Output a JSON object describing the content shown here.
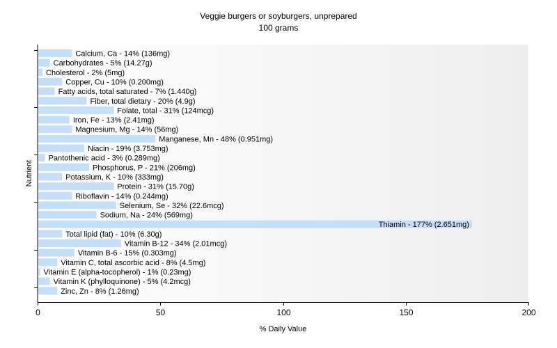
{
  "chart_data": {
    "type": "bar",
    "orientation": "horizontal",
    "title": "Veggie burgers or soyburgers, unprepared",
    "subtitle": "100 grams",
    "xlabel": "% Daily Value",
    "ylabel": "Nutrient",
    "xlim": [
      0,
      200
    ],
    "xticks": [
      0,
      50,
      100,
      150,
      200
    ],
    "grid": false,
    "bar_color": "#c6dff8",
    "background_gradient": [
      "#ffffff",
      "#eeeeee"
    ],
    "categories": [
      "Calcium, Ca",
      "Carbohydrates",
      "Cholesterol",
      "Copper, Cu",
      "Fatty acids, total saturated",
      "Fiber, total dietary",
      "Folate, total",
      "Iron, Fe",
      "Magnesium, Mg",
      "Manganese, Mn",
      "Niacin",
      "Pantothenic acid",
      "Phosphorus, P",
      "Potassium, K",
      "Protein",
      "Riboflavin",
      "Selenium, Se",
      "Sodium, Na",
      "Thiamin",
      "Total lipid (fat)",
      "Vitamin B-12",
      "Vitamin B-6",
      "Vitamin C, total ascorbic acid",
      "Vitamin E (alpha-tocopherol)",
      "Vitamin K (phylloquinone)",
      "Zinc, Zn"
    ],
    "values": [
      14,
      5,
      2,
      10,
      7,
      20,
      31,
      13,
      14,
      48,
      19,
      3,
      21,
      10,
      31,
      14,
      32,
      24,
      177,
      10,
      34,
      15,
      8,
      1,
      5,
      8
    ],
    "labels": [
      "Calcium, Ca - 14% (136mg)",
      "Carbohydrates - 5% (14.27g)",
      "Cholesterol - 2% (5mg)",
      "Copper, Cu - 10% (0.200mg)",
      "Fatty acids, total saturated - 7% (1.440g)",
      "Fiber, total dietary - 20% (4.9g)",
      "Folate, total - 31% (124mcg)",
      "Iron, Fe - 13% (2.41mg)",
      "Magnesium, Mg - 14% (56mg)",
      "Manganese, Mn - 48% (0.951mg)",
      "Niacin - 19% (3.753mg)",
      "Pantothenic acid - 3% (0.289mg)",
      "Phosphorus, P - 21% (206mg)",
      "Potassium, K - 10% (333mg)",
      "Protein - 31% (15.70g)",
      "Riboflavin - 14% (0.244mg)",
      "Selenium, Se - 32% (22.6mcg)",
      "Sodium, Na - 24% (569mg)",
      "Thiamin - 177% (2.651mg)",
      "Total lipid (fat) - 10% (6.30g)",
      "Vitamin B-12 - 34% (2.01mcg)",
      "Vitamin B-6 - 15% (0.303mg)",
      "Vitamin C, total ascorbic acid - 8% (4.5mg)",
      "Vitamin E (alpha-tocopherol) - 1% (0.23mg)",
      "Vitamin K (phylloquinone) - 5% (4.2mcg)",
      "Zinc, Zn - 8% (1.26mg)"
    ]
  }
}
